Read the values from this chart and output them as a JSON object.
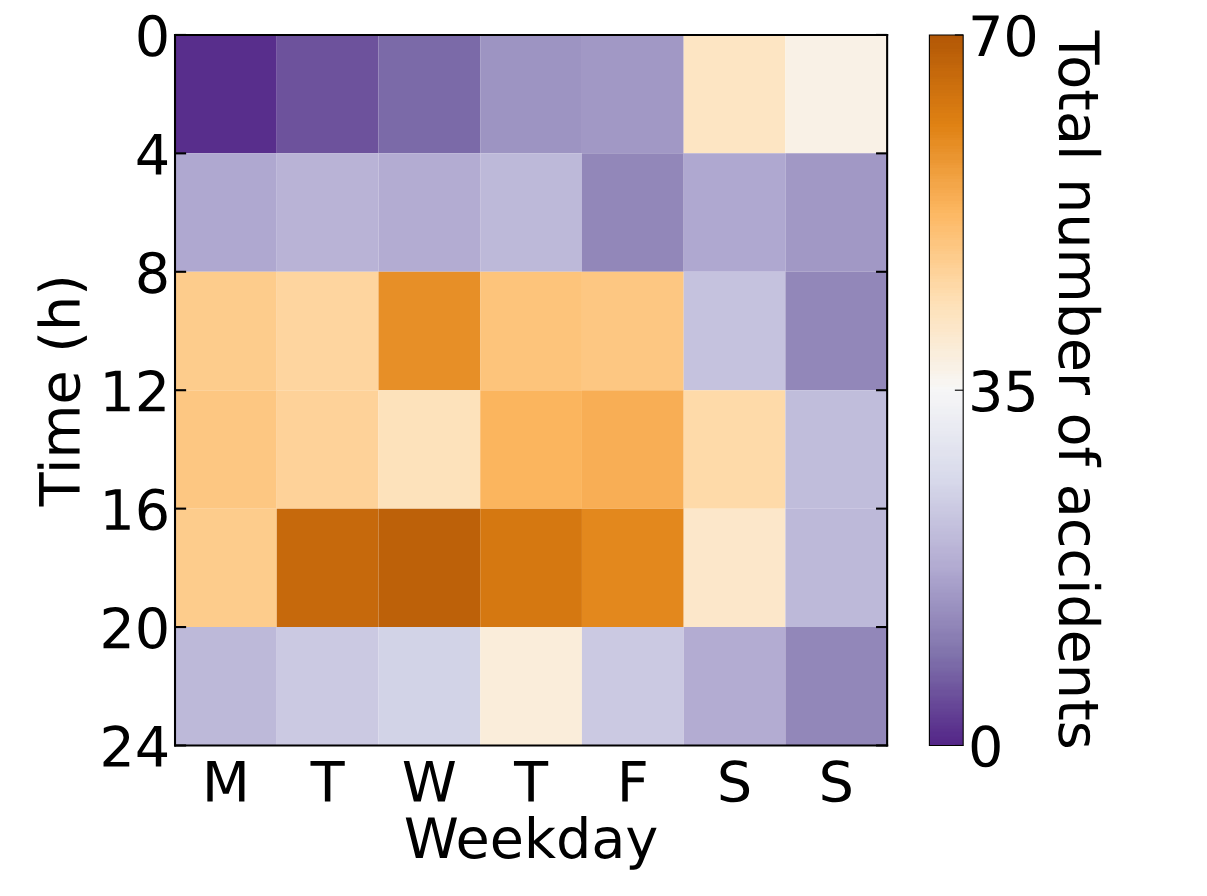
{
  "chart_data": {
    "type": "heatmap",
    "xlabel": "Weekday",
    "ylabel": "Time (h)",
    "clabel": "Total number of accidents",
    "categories": [
      "M",
      "T",
      "W",
      "T",
      "F",
      "S",
      "S"
    ],
    "ylim": [
      24,
      0
    ],
    "yticks": [
      0,
      4,
      8,
      12,
      16,
      20,
      24
    ],
    "cells": [
      [
        1,
        5,
        8,
        14,
        15,
        42,
        37
      ],
      [
        17,
        19,
        18,
        20,
        12,
        17,
        15
      ],
      [
        48,
        46,
        59,
        50,
        49,
        22,
        12
      ],
      [
        49,
        47,
        43,
        53,
        54,
        45,
        21
      ],
      [
        48,
        66,
        68,
        63,
        60,
        41,
        20
      ],
      [
        20,
        23,
        25,
        39,
        23,
        18,
        12
      ]
    ],
    "clim": [
      0,
      70
    ],
    "cticks": [
      0,
      35,
      70
    ]
  }
}
